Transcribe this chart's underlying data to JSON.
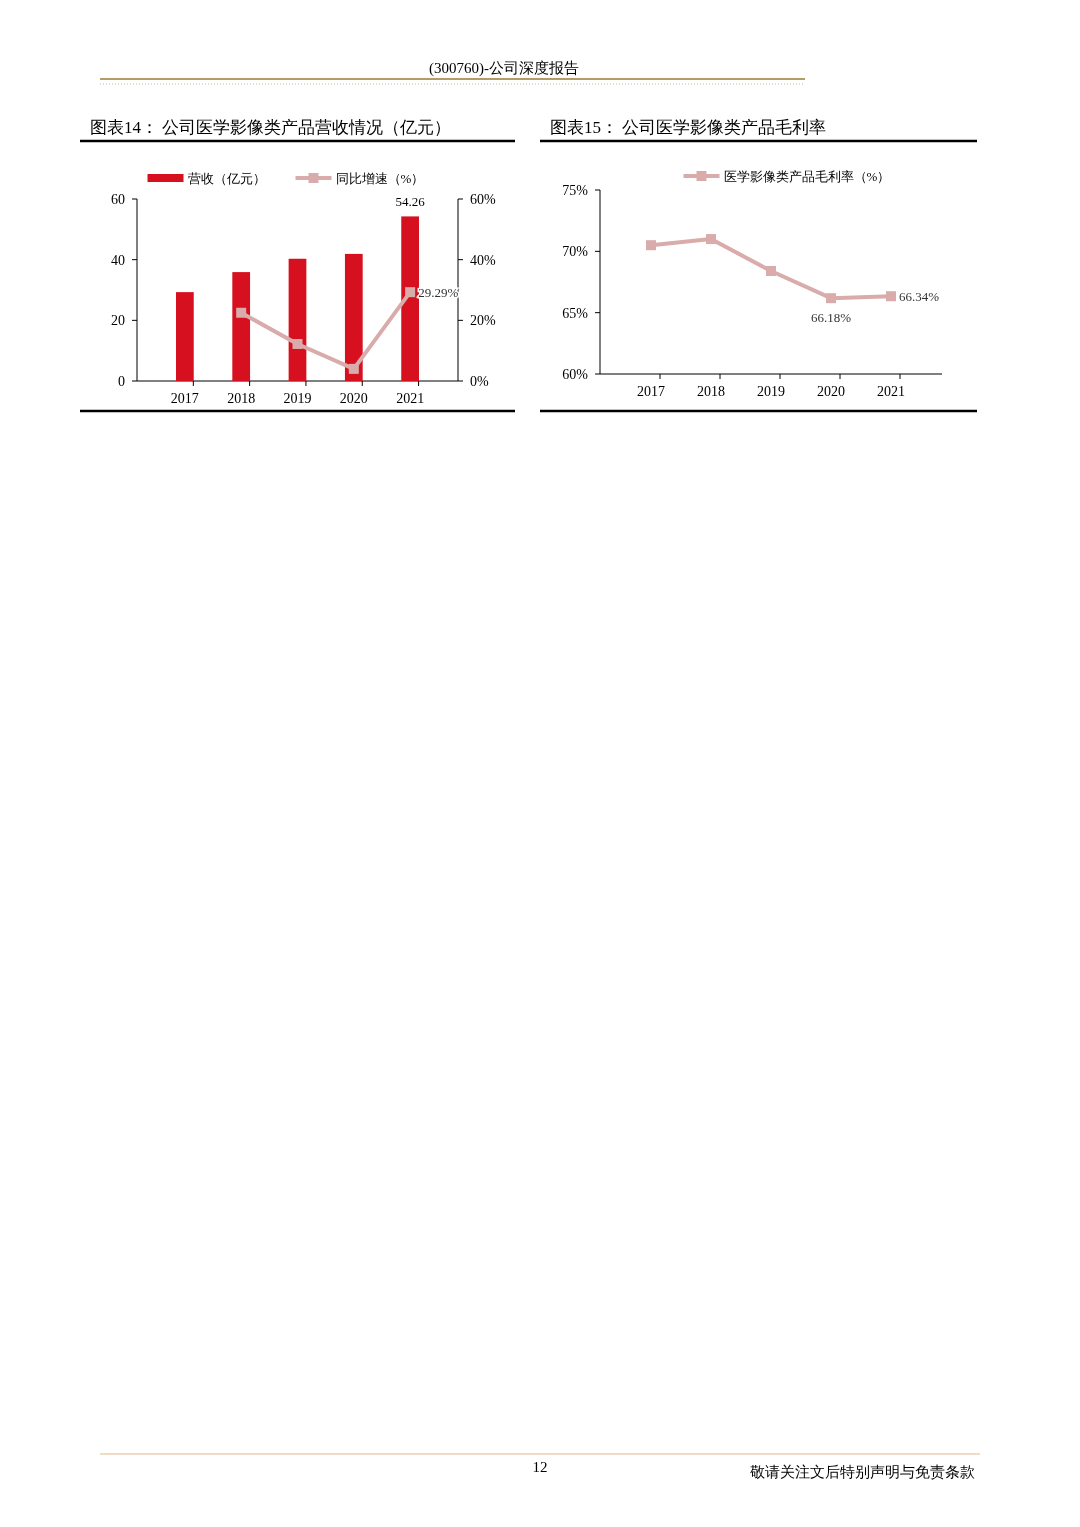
{
  "chart_data": [
    {
      "type": "bar",
      "title": "图表14：  公司医学影像类产品营收情况（亿元）",
      "categories": [
        "2017",
        "2018",
        "2019",
        "2020",
        "2021"
      ],
      "series": [
        {
          "name": "营收（亿元）",
          "color": "#d7101f",
          "values": [
            29.3,
            35.9,
            40.3,
            41.9,
            54.26
          ],
          "value_labels": [
            null,
            null,
            null,
            null,
            "54.26"
          ]
        },
        {
          "name": "同比增速（%）",
          "type": "line",
          "axis": "y2",
          "color": "#d9abab",
          "values": [
            null,
            22.5,
            12.2,
            4.0,
            29.29
          ],
          "value_labels": [
            null,
            null,
            null,
            null,
            "29.29%"
          ]
        }
      ],
      "ylim": [
        0,
        60
      ],
      "yticks": [
        0,
        20,
        40,
        60
      ],
      "y2lim": [
        0,
        60
      ],
      "y2ticks": [
        {
          "value": 0,
          "label": "0%"
        },
        {
          "value": 20,
          "label": "20%"
        },
        {
          "value": 40,
          "label": "40%"
        },
        {
          "value": 60,
          "label": "60%"
        }
      ],
      "marker": "square",
      "legend": "top",
      "grid": false,
      "annotations": [
        "(300760)-公司深度报告",
        "12",
        "敬请关注文后特别声明与免责条款"
      ]
    },
    {
      "type": "line",
      "title": "图表15：  公司医学影像类产品毛利率",
      "categories": [
        "2017",
        "2018",
        "2019",
        "2020",
        "2021"
      ],
      "series": [
        {
          "name": "医学影像类产品毛利率（%）",
          "color": "#d9abab",
          "values": [
            70.5,
            71.0,
            68.4,
            66.18,
            66.34
          ],
          "value_labels": [
            null,
            null,
            null,
            "66.18%",
            "66.34%"
          ]
        }
      ],
      "ylim": [
        60,
        75
      ],
      "yticks": [
        {
          "value": 60,
          "label": "60%"
        },
        {
          "value": 65,
          "label": "65%"
        },
        {
          "value": 70,
          "label": "70%"
        },
        {
          "value": 75,
          "label": "75%"
        }
      ],
      "marker": "square",
      "legend": "top",
      "grid": false
    }
  ]
}
